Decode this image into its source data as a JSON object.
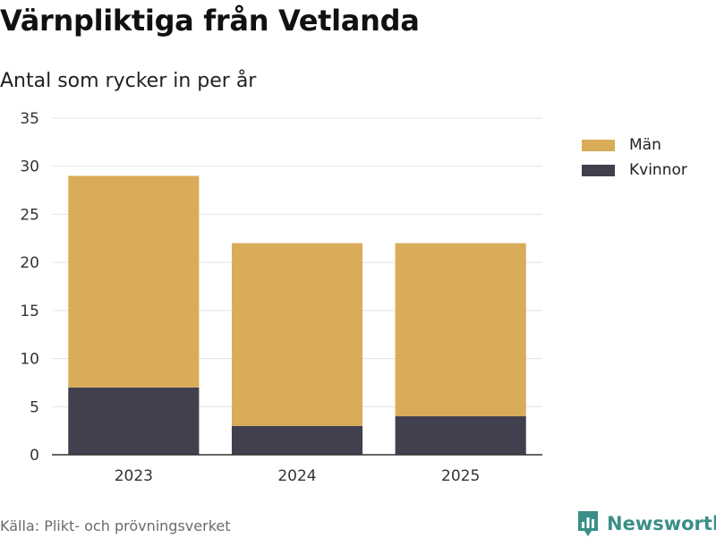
{
  "title": "Värnpliktiga från Vetlanda",
  "subtitle": "Antal som rycker in per år",
  "source": "Källa: Plikt- och prövningsverket",
  "brand": "Newsworthy",
  "colors": {
    "man": "#d9ac59",
    "kvinnor": "#423f4e",
    "brand": "#3a8f87",
    "grid": "#e2e2e2",
    "axis": "#333333"
  },
  "chart_data": {
    "type": "bar",
    "stacked": true,
    "categories": [
      "2023",
      "2024",
      "2025"
    ],
    "series": [
      {
        "name": "Kvinnor",
        "values": [
          7,
          3,
          4
        ]
      },
      {
        "name": "Män",
        "values": [
          22,
          19,
          18
        ]
      }
    ],
    "ylim": [
      0,
      35
    ],
    "yticks": [
      0,
      5,
      10,
      15,
      20,
      25,
      30,
      35
    ],
    "xlabel": "",
    "ylabel": "",
    "legend": [
      "Män",
      "Kvinnor"
    ],
    "legend_position": "right"
  }
}
